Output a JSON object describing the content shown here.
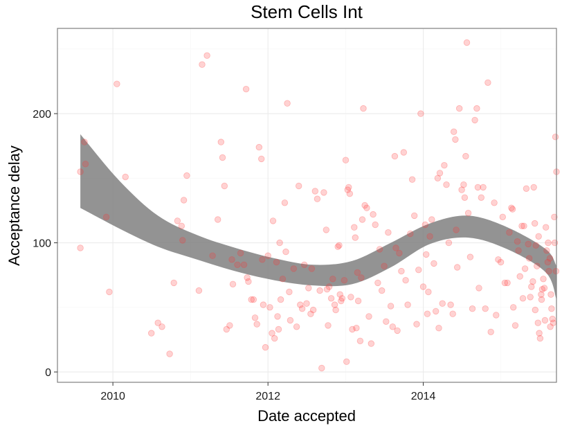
{
  "chart_data": {
    "type": "scatter",
    "title": "Stem Cells Int",
    "xlabel": "Date accepted",
    "ylabel": "Acceptance delay",
    "xlim": [
      "2009-04-15",
      "2015-09-20"
    ],
    "ylim": [
      -8,
      266
    ],
    "x_ticks": [
      "2010-01-01",
      "2012-01-01",
      "2014-01-01"
    ],
    "x_tick_labels": [
      "2010",
      "2012",
      "2014"
    ],
    "y_ticks": [
      0,
      100,
      200
    ],
    "y_tick_labels": [
      "0",
      "100",
      "200"
    ],
    "grid": true,
    "legend": "none",
    "point_color": "#ff3333",
    "band_color": "#808080",
    "points": [
      [
        "2009-08-01",
        155
      ],
      [
        "2009-08-01",
        96
      ],
      [
        "2009-08-20",
        178
      ],
      [
        "2009-08-25",
        161
      ],
      [
        "2009-12-01",
        120
      ],
      [
        "2009-12-15",
        62
      ],
      [
        "2010-01-20",
        223
      ],
      [
        "2010-03-01",
        151
      ],
      [
        "2010-07-01",
        30
      ],
      [
        "2010-08-01",
        38
      ],
      [
        "2010-08-20",
        35
      ],
      [
        "2010-09-25",
        14
      ],
      [
        "2010-10-15",
        69
      ],
      [
        "2010-11-01",
        117
      ],
      [
        "2010-11-20",
        113
      ],
      [
        "2010-12-01",
        133
      ],
      [
        "2010-12-15",
        152
      ],
      [
        "2010-11-25",
        102
      ],
      [
        "2011-02-10",
        63
      ],
      [
        "2011-02-25",
        238
      ],
      [
        "2011-03-20",
        245
      ],
      [
        "2011-04-15",
        90
      ],
      [
        "2011-05-10",
        118
      ],
      [
        "2011-05-25",
        178
      ],
      [
        "2011-06-01",
        166
      ],
      [
        "2011-06-10",
        144
      ],
      [
        "2011-06-20",
        33
      ],
      [
        "2011-07-05",
        36
      ],
      [
        "2011-07-15",
        87
      ],
      [
        "2011-07-20",
        68
      ],
      [
        "2011-08-10",
        83
      ],
      [
        "2011-08-25",
        92
      ],
      [
        "2011-09-10",
        83
      ],
      [
        "2011-09-20",
        219
      ],
      [
        "2011-09-25",
        73
      ],
      [
        "2011-10-01",
        70
      ],
      [
        "2011-10-15",
        56
      ],
      [
        "2011-10-25",
        56
      ],
      [
        "2011-11-01",
        42
      ],
      [
        "2011-11-10",
        37
      ],
      [
        "2011-11-20",
        174
      ],
      [
        "2011-12-01",
        165
      ],
      [
        "2011-12-05",
        87
      ],
      [
        "2011-12-10",
        52
      ],
      [
        "2011-12-20",
        19
      ],
      [
        "2012-01-01",
        90
      ],
      [
        "2012-01-10",
        50
      ],
      [
        "2012-01-20",
        30
      ],
      [
        "2012-01-25",
        117
      ],
      [
        "2012-02-01",
        26
      ],
      [
        "2012-02-10",
        85
      ],
      [
        "2012-02-15",
        43
      ],
      [
        "2012-02-20",
        33
      ],
      [
        "2012-02-25",
        100
      ],
      [
        "2012-03-01",
        56
      ],
      [
        "2012-03-10",
        72
      ],
      [
        "2012-03-20",
        131
      ],
      [
        "2012-03-25",
        93
      ],
      [
        "2012-04-01",
        208
      ],
      [
        "2012-04-10",
        62
      ],
      [
        "2012-04-15",
        40
      ],
      [
        "2012-05-01",
        80
      ],
      [
        "2012-05-15",
        35
      ],
      [
        "2012-05-25",
        144
      ],
      [
        "2012-06-01",
        52
      ],
      [
        "2012-06-10",
        49
      ],
      [
        "2012-06-20",
        83
      ],
      [
        "2012-07-01",
        53
      ],
      [
        "2012-07-10",
        65
      ],
      [
        "2012-07-20",
        45
      ],
      [
        "2012-07-25",
        80
      ],
      [
        "2012-08-01",
        48
      ],
      [
        "2012-08-10",
        140
      ],
      [
        "2012-08-20",
        134
      ],
      [
        "2012-09-01",
        63
      ],
      [
        "2012-09-10",
        3
      ],
      [
        "2012-09-20",
        139
      ],
      [
        "2012-10-01",
        110
      ],
      [
        "2012-10-05",
        64
      ],
      [
        "2012-10-10",
        36
      ],
      [
        "2012-10-15",
        66
      ],
      [
        "2012-10-25",
        57
      ],
      [
        "2012-11-01",
        72
      ],
      [
        "2012-11-10",
        52
      ],
      [
        "2012-11-15",
        48
      ],
      [
        "2012-11-25",
        97
      ],
      [
        "2012-12-01",
        98
      ],
      [
        "2012-12-05",
        60
      ],
      [
        "2012-12-10",
        55
      ],
      [
        "2012-12-15",
        57
      ],
      [
        "2012-12-25",
        71
      ],
      [
        "2013-01-01",
        164
      ],
      [
        "2013-01-05",
        8
      ],
      [
        "2013-01-10",
        141
      ],
      [
        "2013-01-15",
        143
      ],
      [
        "2013-01-20",
        138
      ],
      [
        "2013-01-25",
        58
      ],
      [
        "2013-02-01",
        33
      ],
      [
        "2013-02-10",
        112
      ],
      [
        "2013-02-15",
        104
      ],
      [
        "2013-02-20",
        34
      ],
      [
        "2013-02-25",
        77
      ],
      [
        "2013-03-01",
        55
      ],
      [
        "2013-03-10",
        24
      ],
      [
        "2013-03-15",
        73
      ],
      [
        "2013-03-20",
        118
      ],
      [
        "2013-03-25",
        204
      ],
      [
        "2013-04-01",
        129
      ],
      [
        "2013-04-10",
        127
      ],
      [
        "2013-04-20",
        43
      ],
      [
        "2013-05-01",
        22
      ],
      [
        "2013-05-10",
        122
      ],
      [
        "2013-05-20",
        114
      ],
      [
        "2013-06-01",
        69
      ],
      [
        "2013-06-10",
        95
      ],
      [
        "2013-06-20",
        63
      ],
      [
        "2013-07-01",
        82
      ],
      [
        "2013-07-10",
        39
      ],
      [
        "2013-07-20",
        108
      ],
      [
        "2013-08-01",
        51
      ],
      [
        "2013-08-10",
        35
      ],
      [
        "2013-08-20",
        167
      ],
      [
        "2013-08-25",
        96
      ],
      [
        "2013-09-01",
        32
      ],
      [
        "2013-09-10",
        92
      ],
      [
        "2013-09-20",
        78
      ],
      [
        "2013-10-01",
        170
      ],
      [
        "2013-10-10",
        71
      ],
      [
        "2013-10-20",
        52
      ],
      [
        "2013-11-01",
        107
      ],
      [
        "2013-11-10",
        149
      ],
      [
        "2013-11-20",
        121
      ],
      [
        "2013-12-01",
        37
      ],
      [
        "2013-12-10",
        79
      ],
      [
        "2013-12-20",
        200
      ],
      [
        "2014-01-01",
        66
      ],
      [
        "2014-01-10",
        114
      ],
      [
        "2014-01-15",
        91
      ],
      [
        "2014-01-20",
        45
      ],
      [
        "2014-01-25",
        62
      ],
      [
        "2014-02-01",
        105
      ],
      [
        "2014-02-10",
        118
      ],
      [
        "2014-02-20",
        84
      ],
      [
        "2014-03-01",
        47
      ],
      [
        "2014-03-10",
        150
      ],
      [
        "2014-03-15",
        34
      ],
      [
        "2014-03-20",
        154
      ],
      [
        "2014-04-01",
        53
      ],
      [
        "2014-04-10",
        160
      ],
      [
        "2014-04-20",
        145
      ],
      [
        "2014-05-01",
        100
      ],
      [
        "2014-05-10",
        52
      ],
      [
        "2014-05-20",
        45
      ],
      [
        "2014-05-25",
        186
      ],
      [
        "2014-06-01",
        180
      ],
      [
        "2014-06-05",
        110
      ],
      [
        "2014-06-10",
        81
      ],
      [
        "2014-06-20",
        204
      ],
      [
        "2014-07-01",
        141
      ],
      [
        "2014-07-10",
        145
      ],
      [
        "2014-07-15",
        135
      ],
      [
        "2014-07-20",
        167
      ],
      [
        "2014-07-25",
        255
      ],
      [
        "2014-08-01",
        123
      ],
      [
        "2014-08-10",
        89
      ],
      [
        "2014-08-20",
        49
      ],
      [
        "2014-09-01",
        195
      ],
      [
        "2014-09-10",
        204
      ],
      [
        "2014-09-15",
        143
      ],
      [
        "2014-09-20",
        65
      ],
      [
        "2014-10-01",
        135
      ],
      [
        "2014-10-10",
        143
      ],
      [
        "2014-10-20",
        49
      ],
      [
        "2014-11-01",
        224
      ],
      [
        "2014-11-15",
        31
      ],
      [
        "2014-12-01",
        131
      ],
      [
        "2014-12-10",
        44
      ],
      [
        "2014-12-20",
        87
      ],
      [
        "2015-01-01",
        85
      ],
      [
        "2015-01-10",
        120
      ],
      [
        "2015-01-20",
        69
      ],
      [
        "2015-02-01",
        69
      ],
      [
        "2015-02-10",
        108
      ],
      [
        "2015-02-20",
        127
      ],
      [
        "2015-03-01",
        50
      ],
      [
        "2015-03-10",
        36
      ],
      [
        "2015-03-20",
        101
      ],
      [
        "2015-04-01",
        74
      ],
      [
        "2015-04-10",
        113
      ],
      [
        "2015-04-20",
        113
      ],
      [
        "2015-05-01",
        142
      ],
      [
        "2015-05-10",
        99
      ],
      [
        "2015-05-20",
        58
      ],
      [
        "2015-06-01",
        70
      ],
      [
        "2015-06-05",
        143
      ],
      [
        "2015-06-10",
        115
      ],
      [
        "2015-06-15",
        98
      ],
      [
        "2015-06-20",
        82
      ],
      [
        "2015-06-25",
        38
      ],
      [
        "2015-07-01",
        30
      ],
      [
        "2015-07-05",
        26
      ],
      [
        "2015-07-10",
        60
      ],
      [
        "2015-07-15",
        64
      ],
      [
        "2015-07-20",
        72
      ],
      [
        "2015-07-25",
        65
      ],
      [
        "2015-08-01",
        112
      ],
      [
        "2015-08-05",
        94
      ],
      [
        "2015-08-10",
        85
      ],
      [
        "2015-08-15",
        78
      ],
      [
        "2015-08-20",
        88
      ],
      [
        "2015-08-25",
        60
      ],
      [
        "2015-09-01",
        41
      ],
      [
        "2015-09-05",
        38
      ],
      [
        "2015-09-10",
        120
      ],
      [
        "2015-09-15",
        182
      ],
      [
        "2015-09-20",
        155
      ],
      [
        "2015-04-15",
        57
      ],
      [
        "2015-05-25",
        66
      ],
      [
        "2015-06-28",
        105
      ],
      [
        "2015-07-28",
        40
      ],
      [
        "2015-08-28",
        49
      ],
      [
        "2015-02-25",
        126
      ],
      [
        "2015-03-25",
        94
      ],
      [
        "2015-05-15",
        88
      ],
      [
        "2015-04-25",
        80
      ],
      [
        "2015-06-12",
        48
      ],
      [
        "2015-07-12",
        56
      ],
      [
        "2015-08-12",
        100
      ],
      [
        "2015-08-22",
        35
      ],
      [
        "2015-09-12",
        100
      ],
      [
        "2015-09-18",
        78
      ]
    ],
    "smooth_band": {
      "x": [
        "2009-08-01",
        "2010-02-01",
        "2010-08-01",
        "2011-02-01",
        "2011-08-01",
        "2012-02-01",
        "2012-08-01",
        "2013-02-01",
        "2013-08-01",
        "2014-02-01",
        "2014-08-01",
        "2015-02-01",
        "2015-08-01",
        "2015-09-20"
      ],
      "upper": [
        184,
        148,
        121,
        106,
        96,
        88,
        83,
        86,
        100,
        115,
        121,
        112,
        95,
        82
      ],
      "lower": [
        127,
        111,
        97,
        87,
        78,
        71,
        67,
        68,
        81,
        99,
        104,
        95,
        77,
        56
      ]
    }
  }
}
